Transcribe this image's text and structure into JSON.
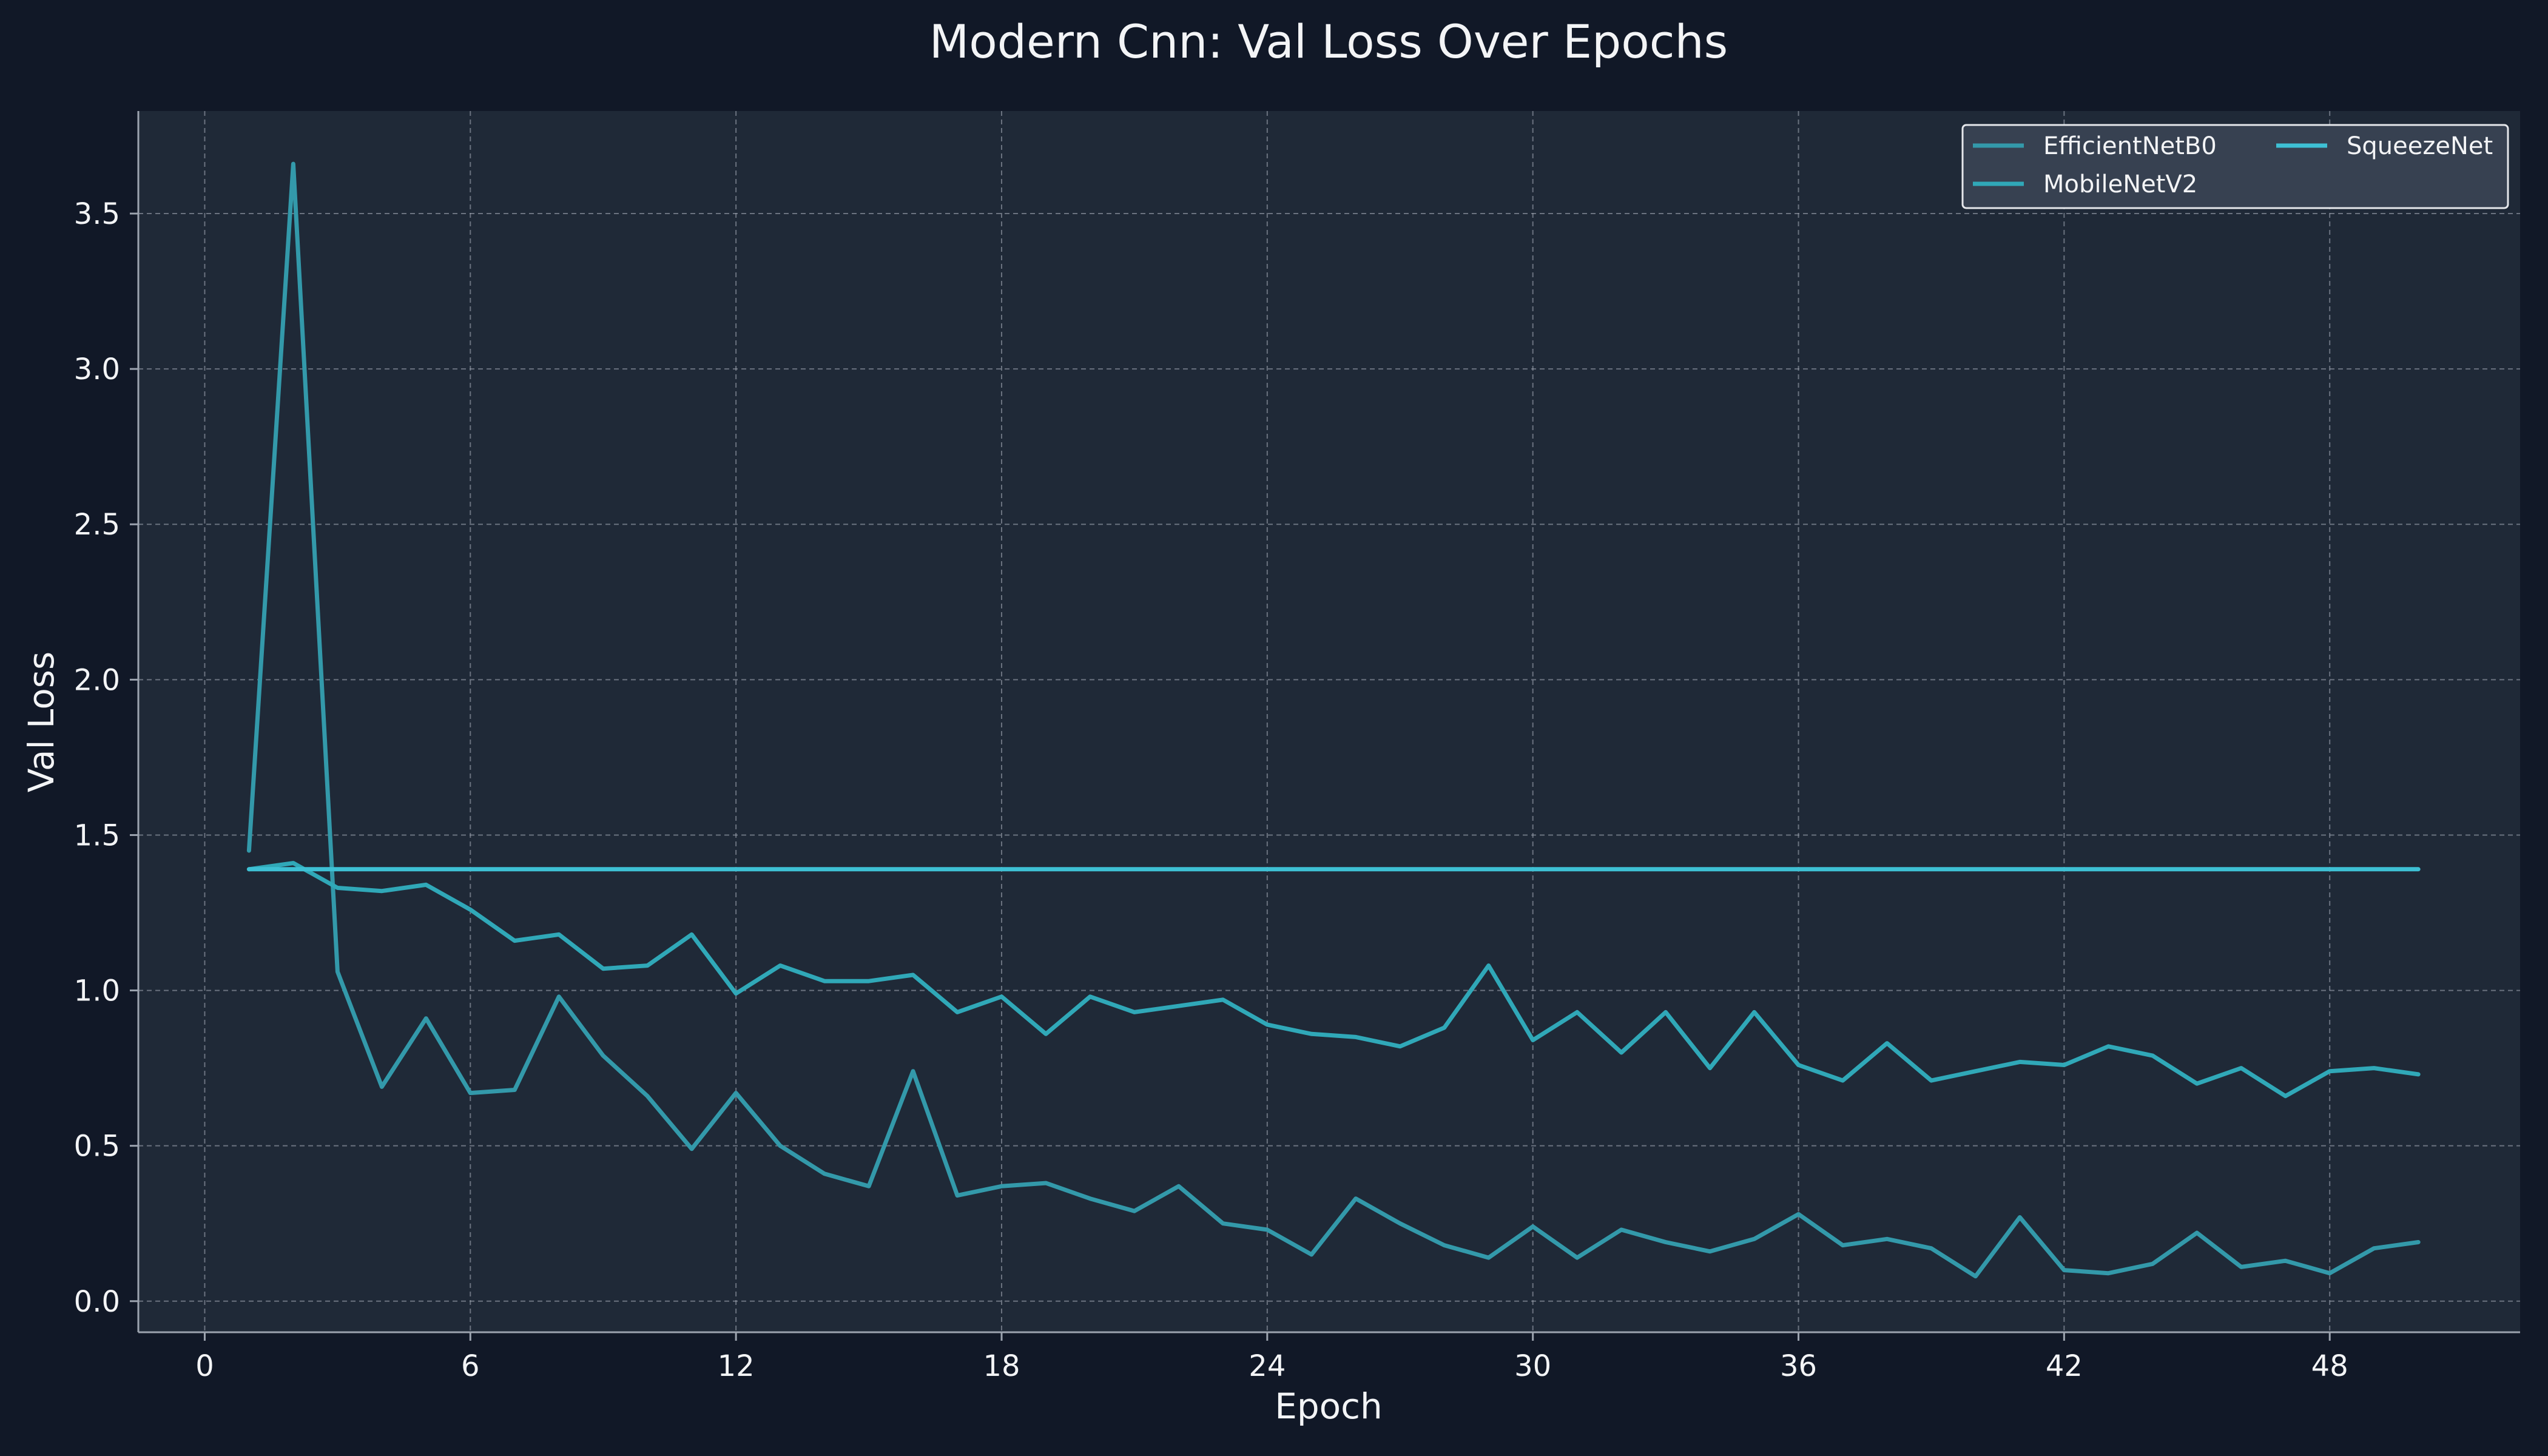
{
  "colors": {
    "figure_bg": "#111827",
    "plot_bg": "#1f2937",
    "text": "#f3f4f6",
    "grid": "#9ca3af",
    "legend_bg": "#374151",
    "legend_border": "#e5e7eb"
  },
  "chart_data": {
    "type": "line",
    "title": "Modern Cnn: Val Loss Over Epochs",
    "xlabel": "Epoch",
    "ylabel": "Val Loss",
    "xlim": [
      -1.5,
      52.3
    ],
    "ylim": [
      -0.1,
      3.83
    ],
    "xticks": [
      0,
      6,
      12,
      18,
      24,
      30,
      36,
      42,
      48
    ],
    "xtick_labels": [
      "0",
      "6",
      "12",
      "18",
      "24",
      "30",
      "36",
      "42",
      "48"
    ],
    "yticks": [
      0.0,
      0.5,
      1.0,
      1.5,
      2.0,
      2.5,
      3.0,
      3.5
    ],
    "ytick_labels": [
      "0.0",
      "0.5",
      "1.0",
      "1.5",
      "2.0",
      "2.5",
      "3.0",
      "3.5"
    ],
    "grid": true,
    "legend_position": "top-right",
    "x": [
      1,
      2,
      3,
      4,
      5,
      6,
      7,
      8,
      9,
      10,
      11,
      12,
      13,
      14,
      15,
      16,
      17,
      18,
      19,
      20,
      21,
      22,
      23,
      24,
      25,
      26,
      27,
      28,
      29,
      30,
      31,
      32,
      33,
      34,
      35,
      36,
      37,
      38,
      39,
      40,
      41,
      42,
      43,
      44,
      45,
      46,
      47,
      48,
      49,
      50
    ],
    "series": [
      {
        "name": "EfficientNetB0",
        "color": "#3399aa",
        "values": [
          1.45,
          3.66,
          1.06,
          0.69,
          0.91,
          0.67,
          0.68,
          0.98,
          0.79,
          0.66,
          0.49,
          0.67,
          0.5,
          0.41,
          0.37,
          0.74,
          0.34,
          0.37,
          0.38,
          0.33,
          0.29,
          0.37,
          0.25,
          0.23,
          0.15,
          0.33,
          0.25,
          0.18,
          0.14,
          0.24,
          0.14,
          0.23,
          0.19,
          0.16,
          0.2,
          0.28,
          0.18,
          0.2,
          0.17,
          0.08,
          0.27,
          0.1,
          0.09,
          0.12,
          0.22,
          0.11,
          0.13,
          0.09,
          0.17,
          0.19
        ]
      },
      {
        "name": "MobileNetV2",
        "color": "#30a8b8",
        "values": [
          1.39,
          1.41,
          1.33,
          1.32,
          1.34,
          1.26,
          1.16,
          1.18,
          1.07,
          1.08,
          1.18,
          0.99,
          1.08,
          1.03,
          1.03,
          1.05,
          0.93,
          0.98,
          0.86,
          0.98,
          0.93,
          0.95,
          0.97,
          0.89,
          0.86,
          0.85,
          0.82,
          0.88,
          1.08,
          0.84,
          0.93,
          0.8,
          0.93,
          0.75,
          0.93,
          0.76,
          0.71,
          0.83,
          0.71,
          0.74,
          0.77,
          0.76,
          0.82,
          0.79,
          0.7,
          0.75,
          0.66,
          0.74,
          0.75,
          0.73
        ]
      },
      {
        "name": "SqueezeNet",
        "color": "#3ec0d4",
        "values": [
          1.39,
          1.39,
          1.39,
          1.39,
          1.39,
          1.39,
          1.39,
          1.39,
          1.39,
          1.39,
          1.39,
          1.39,
          1.39,
          1.39,
          1.39,
          1.39,
          1.39,
          1.39,
          1.39,
          1.39,
          1.39,
          1.39,
          1.39,
          1.39,
          1.39,
          1.39,
          1.39,
          1.39,
          1.39,
          1.39,
          1.39,
          1.39,
          1.39,
          1.39,
          1.39,
          1.39,
          1.39,
          1.39,
          1.39,
          1.39,
          1.39,
          1.39,
          1.39,
          1.39,
          1.39,
          1.39,
          1.39,
          1.39,
          1.39,
          1.39
        ]
      }
    ]
  }
}
